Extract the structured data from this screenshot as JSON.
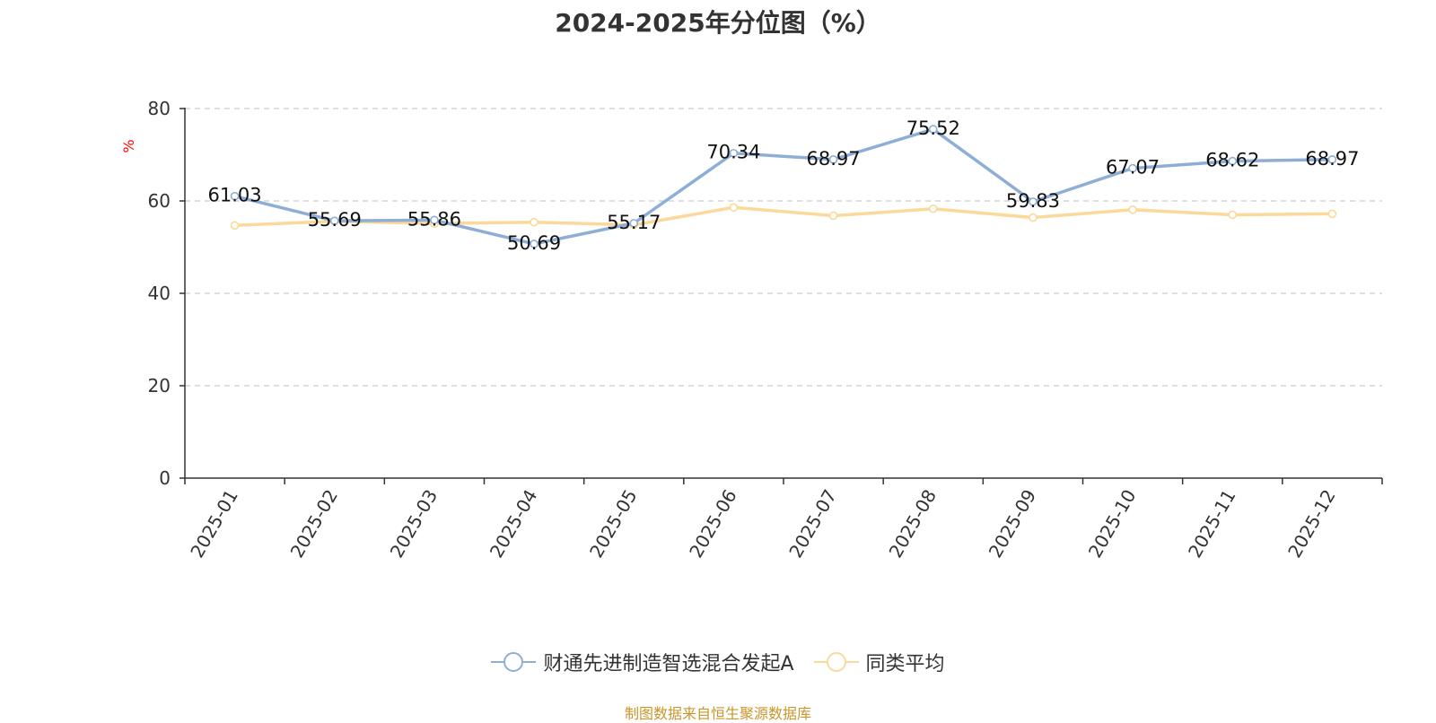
{
  "chart_data": {
    "type": "line",
    "title": "2024-2025年分位图（%）",
    "ylabel": "%",
    "ylim": [
      0,
      80
    ],
    "yticks": [
      0,
      20,
      40,
      60,
      80
    ],
    "grid": true,
    "legend_placement": "bottom",
    "categories": [
      "2025-01",
      "2025-02",
      "2025-03",
      "2025-04",
      "2025-05",
      "2025-06",
      "2025-07",
      "2025-08",
      "2025-09",
      "2025-10",
      "2025-11",
      "2025-12"
    ],
    "series": [
      {
        "name": "财通先进制造智选混合发起A",
        "color": "#8eaed6",
        "values": [
          61.03,
          55.69,
          55.86,
          50.69,
          55.17,
          70.34,
          68.97,
          75.52,
          59.83,
          67.07,
          68.62,
          68.97
        ],
        "show_labels": true
      },
      {
        "name": "同类平均",
        "color": "#fad99b",
        "values": [
          54.7,
          55.6,
          55.1,
          55.4,
          54.8,
          58.6,
          56.8,
          58.3,
          56.4,
          58.1,
          57.0,
          57.2
        ],
        "show_labels": false
      }
    ]
  },
  "footer": "制图数据来自恒生聚源数据库"
}
